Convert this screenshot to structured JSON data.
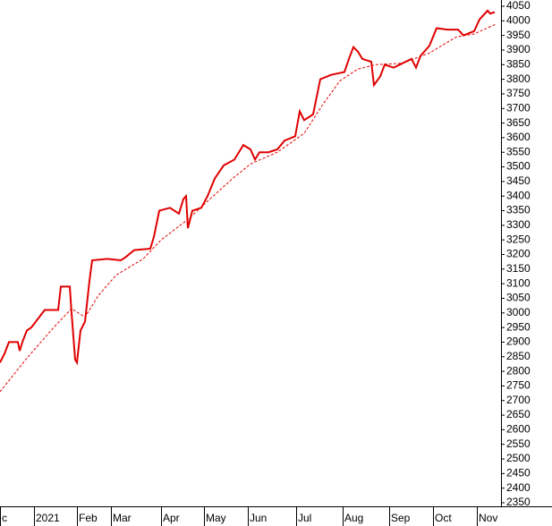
{
  "chart_data": {
    "type": "line",
    "xlim": [
      0,
      560
    ],
    "ylim": [
      2350,
      4050
    ],
    "xticks": [
      {
        "value": 0,
        "label": "c"
      },
      {
        "value": 38,
        "label": "2021"
      },
      {
        "value": 86,
        "label": "Feb"
      },
      {
        "value": 124,
        "label": "Mar"
      },
      {
        "value": 180,
        "label": "Apr"
      },
      {
        "value": 228,
        "label": "May"
      },
      {
        "value": 277,
        "label": "Jun"
      },
      {
        "value": 331,
        "label": "Jul"
      },
      {
        "value": 383,
        "label": "Aug"
      },
      {
        "value": 435,
        "label": "Sep"
      },
      {
        "value": 484,
        "label": "Oct"
      },
      {
        "value": 533,
        "label": "Nov"
      }
    ],
    "yticks": [
      2350,
      2400,
      2450,
      2500,
      2550,
      2600,
      2650,
      2700,
      2750,
      2800,
      2850,
      2900,
      2950,
      3000,
      3050,
      3100,
      3150,
      3200,
      3250,
      3300,
      3350,
      3400,
      3450,
      3500,
      3550,
      3600,
      3650,
      3700,
      3750,
      3800,
      3850,
      3900,
      3950,
      4000,
      4050
    ],
    "grid": false,
    "series": [
      {
        "color": "#e00000",
        "dash": false,
        "x": [
          0,
          5,
          10,
          20,
          22,
          25,
          30,
          35,
          50,
          65,
          68,
          78,
          80,
          84,
          86,
          90,
          95,
          100,
          103,
          120,
          135,
          140,
          150,
          168,
          172,
          178,
          190,
          200,
          205,
          208,
          210,
          215,
          225,
          232,
          240,
          250,
          262,
          272,
          280,
          285,
          290,
          300,
          310,
          318,
          330,
          335,
          340,
          350,
          358,
          370,
          385,
          390,
          395,
          400,
          405,
          415,
          418,
          425,
          430,
          440,
          450,
          460,
          465,
          470,
          480,
          488,
          500,
          512,
          518,
          530,
          536,
          545,
          548,
          553
        ],
        "values": [
          2830,
          2860,
          2900,
          2900,
          2870,
          2900,
          2940,
          2950,
          3010,
          3010,
          3090,
          3090,
          3000,
          2840,
          2830,
          2940,
          2970,
          3110,
          3180,
          3185,
          3180,
          3190,
          3215,
          3220,
          3260,
          3350,
          3360,
          3340,
          3390,
          3400,
          3290,
          3350,
          3360,
          3400,
          3460,
          3505,
          3525,
          3575,
          3560,
          3525,
          3550,
          3550,
          3560,
          3590,
          3605,
          3690,
          3660,
          3680,
          3800,
          3815,
          3825,
          3870,
          3910,
          3895,
          3870,
          3860,
          3780,
          3810,
          3850,
          3840,
          3855,
          3870,
          3840,
          3880,
          3915,
          3975,
          3970,
          3970,
          3950,
          3965,
          4005,
          4035,
          4025,
          4030
        ]
      },
      {
        "color": "#e00000",
        "dash": true,
        "x": [
          0,
          30,
          60,
          80,
          95,
          110,
          130,
          160,
          180,
          210,
          240,
          260,
          280,
          310,
          340,
          360,
          380,
          400,
          420,
          450,
          480,
          510,
          530,
          555
        ],
        "values": [
          2730,
          2845,
          2950,
          3015,
          2985,
          3060,
          3130,
          3185,
          3250,
          3320,
          3405,
          3460,
          3510,
          3550,
          3615,
          3710,
          3795,
          3835,
          3850,
          3855,
          3890,
          3945,
          3955,
          3990
        ]
      }
    ]
  }
}
